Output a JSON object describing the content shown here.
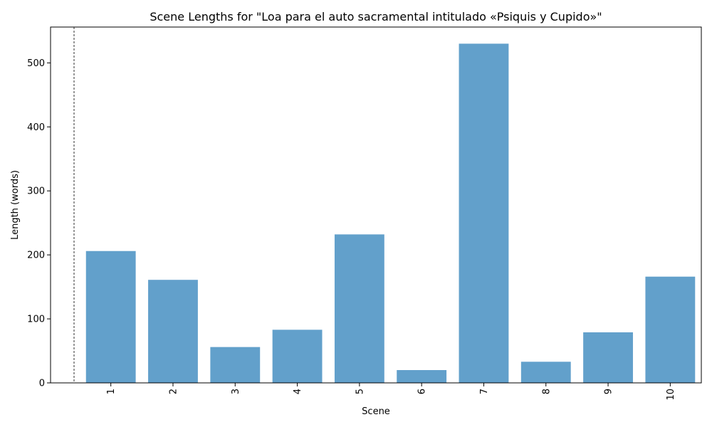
{
  "chart_data": {
    "type": "bar",
    "title": "Scene Lengths for \"Loa para el auto sacramental intitulado «Psiquis y Cupido»\"",
    "xlabel": "Scene",
    "ylabel": "Length (words)",
    "categories": [
      "1",
      "2",
      "3",
      "4",
      "5",
      "6",
      "7",
      "8",
      "9",
      "10"
    ],
    "values": [
      206,
      161,
      56,
      83,
      232,
      20,
      530,
      33,
      79,
      166
    ],
    "ylim": [
      0,
      556
    ],
    "yticks": [
      0,
      100,
      200,
      300,
      400,
      500
    ],
    "bar_color": "#62a0cb",
    "grid": false,
    "x_tick_rotation": "vertical",
    "reference_line": "dashed vertical line left of first bar"
  }
}
